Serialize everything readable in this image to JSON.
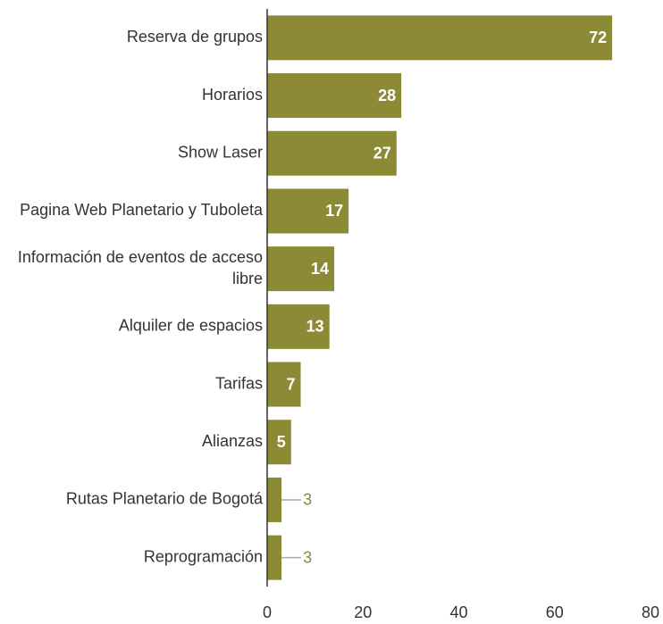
{
  "chart_data": {
    "type": "bar",
    "orientation": "horizontal",
    "categories": [
      "Reserva de grupos",
      "Horarios",
      "Show Laser",
      "Pagina Web Planetario y Tuboleta",
      "Información de eventos de acceso libre",
      "Alquiler de espacios",
      "Tarifas",
      "Alianzas",
      "Rutas Planetario de Bogotá",
      "Reprogramación"
    ],
    "values": [
      72,
      28,
      27,
      17,
      14,
      13,
      7,
      5,
      3,
      3
    ],
    "color": "#8c8a35",
    "xlim": [
      0,
      80
    ],
    "xticks": [
      0,
      20,
      40,
      60,
      80
    ],
    "grid": false
  }
}
